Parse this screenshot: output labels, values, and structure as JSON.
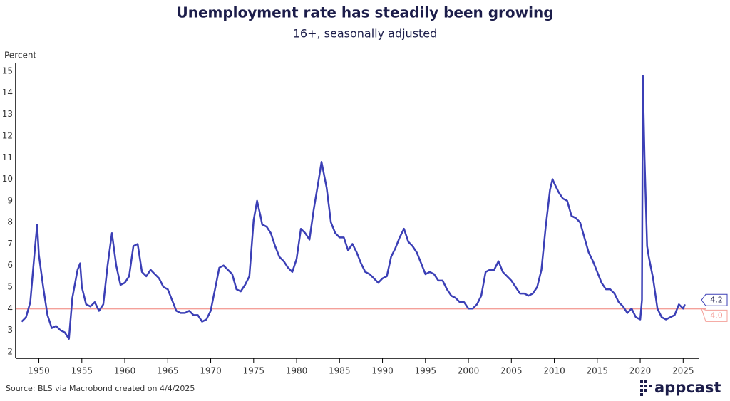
{
  "chart_data": {
    "type": "line",
    "title": "Unemployment rate has steadily been growing",
    "subtitle": "16+, seasonally adjusted",
    "y_axis_label": "Percent",
    "source": "Source: BLS via Macrobond created on 4/4/2025",
    "logo": "appcast",
    "x": [
      1948.0,
      1948.5,
      1949.0,
      1949.5,
      1949.8,
      1950.0,
      1950.5,
      1951.0,
      1951.5,
      1952.0,
      1952.5,
      1953.0,
      1953.5,
      1953.9,
      1954.5,
      1954.8,
      1955.0,
      1955.5,
      1956.0,
      1956.5,
      1957.0,
      1957.5,
      1958.0,
      1958.5,
      1959.0,
      1959.5,
      1960.0,
      1960.5,
      1961.0,
      1961.5,
      1962.0,
      1962.5,
      1963.0,
      1963.5,
      1964.0,
      1964.5,
      1965.0,
      1965.5,
      1966.0,
      1966.5,
      1967.0,
      1967.5,
      1968.0,
      1968.5,
      1969.0,
      1969.5,
      1970.0,
      1970.5,
      1971.0,
      1971.5,
      1972.0,
      1972.5,
      1973.0,
      1973.5,
      1974.0,
      1974.5,
      1975.0,
      1975.4,
      1975.8,
      1976.0,
      1976.5,
      1977.0,
      1977.5,
      1978.0,
      1978.5,
      1979.0,
      1979.5,
      1980.0,
      1980.5,
      1981.0,
      1981.5,
      1982.0,
      1982.5,
      1982.9,
      1983.5,
      1984.0,
      1984.5,
      1985.0,
      1985.5,
      1986.0,
      1986.5,
      1987.0,
      1987.5,
      1988.0,
      1988.5,
      1989.0,
      1989.5,
      1990.0,
      1990.5,
      1991.0,
      1991.5,
      1992.0,
      1992.5,
      1993.0,
      1993.5,
      1994.0,
      1994.5,
      1995.0,
      1995.5,
      1996.0,
      1996.5,
      1997.0,
      1997.5,
      1998.0,
      1998.5,
      1999.0,
      1999.5,
      2000.0,
      2000.5,
      2001.0,
      2001.5,
      2002.0,
      2002.5,
      2003.0,
      2003.5,
      2004.0,
      2004.5,
      2005.0,
      2005.5,
      2006.0,
      2006.5,
      2007.0,
      2007.5,
      2008.0,
      2008.5,
      2009.0,
      2009.5,
      2009.8,
      2010.0,
      2010.5,
      2011.0,
      2011.5,
      2012.0,
      2012.5,
      2013.0,
      2013.5,
      2014.0,
      2014.5,
      2015.0,
      2015.5,
      2016.0,
      2016.5,
      2017.0,
      2017.5,
      2018.0,
      2018.5,
      2019.0,
      2019.5,
      2020.0,
      2020.2,
      2020.3,
      2020.5,
      2020.8,
      2021.0,
      2021.5,
      2022.0,
      2022.5,
      2023.0,
      2023.5,
      2024.0,
      2024.5,
      2025.0,
      2025.2
    ],
    "series": [
      {
        "name": "Unemployment rate",
        "color": "#3b3fb6",
        "values": [
          3.4,
          3.6,
          4.3,
          6.6,
          7.9,
          6.5,
          5.0,
          3.7,
          3.1,
          3.2,
          3.0,
          2.9,
          2.6,
          4.5,
          5.8,
          6.1,
          5.0,
          4.2,
          4.1,
          4.3,
          3.9,
          4.2,
          6.0,
          7.5,
          6.0,
          5.1,
          5.2,
          5.5,
          6.9,
          7.0,
          5.7,
          5.5,
          5.8,
          5.6,
          5.4,
          5.0,
          4.9,
          4.4,
          3.9,
          3.8,
          3.8,
          3.9,
          3.7,
          3.7,
          3.4,
          3.5,
          3.9,
          4.9,
          5.9,
          6.0,
          5.8,
          5.6,
          4.9,
          4.8,
          5.1,
          5.5,
          8.1,
          9.0,
          8.3,
          7.9,
          7.8,
          7.5,
          6.9,
          6.4,
          6.2,
          5.9,
          5.7,
          6.3,
          7.7,
          7.5,
          7.2,
          8.6,
          9.8,
          10.8,
          9.6,
          8.0,
          7.5,
          7.3,
          7.3,
          6.7,
          7.0,
          6.6,
          6.1,
          5.7,
          5.6,
          5.4,
          5.2,
          5.4,
          5.5,
          6.4,
          6.8,
          7.3,
          7.7,
          7.1,
          6.9,
          6.6,
          6.1,
          5.6,
          5.7,
          5.6,
          5.3,
          5.3,
          4.9,
          4.6,
          4.5,
          4.3,
          4.3,
          4.0,
          4.0,
          4.2,
          4.6,
          5.7,
          5.8,
          5.8,
          6.2,
          5.7,
          5.5,
          5.3,
          5.0,
          4.7,
          4.7,
          4.6,
          4.7,
          5.0,
          5.8,
          7.8,
          9.5,
          10.0,
          9.8,
          9.4,
          9.1,
          9.0,
          8.3,
          8.2,
          8.0,
          7.3,
          6.6,
          6.2,
          5.7,
          5.2,
          4.9,
          4.9,
          4.7,
          4.3,
          4.1,
          3.8,
          4.0,
          3.6,
          3.5,
          4.4,
          14.8,
          11.0,
          6.9,
          6.4,
          5.4,
          4.0,
          3.6,
          3.5,
          3.6,
          3.7,
          4.2,
          4.0,
          4.2
        ]
      }
    ],
    "reference_line": {
      "value": 4,
      "label": "4.0",
      "color": "#f4a09a"
    },
    "xlim": [
      1947.3,
      2026.8
    ],
    "xticks": [
      1950,
      1955,
      1960,
      1965,
      1970,
      1975,
      1980,
      1985,
      1990,
      1995,
      2000,
      2005,
      2010,
      2015,
      2020,
      2025
    ],
    "ylim": [
      1.7,
      15.4
    ],
    "yticks": [
      2,
      3,
      4,
      5,
      6,
      7,
      8,
      9,
      10,
      11,
      12,
      13,
      14,
      15
    ]
  }
}
